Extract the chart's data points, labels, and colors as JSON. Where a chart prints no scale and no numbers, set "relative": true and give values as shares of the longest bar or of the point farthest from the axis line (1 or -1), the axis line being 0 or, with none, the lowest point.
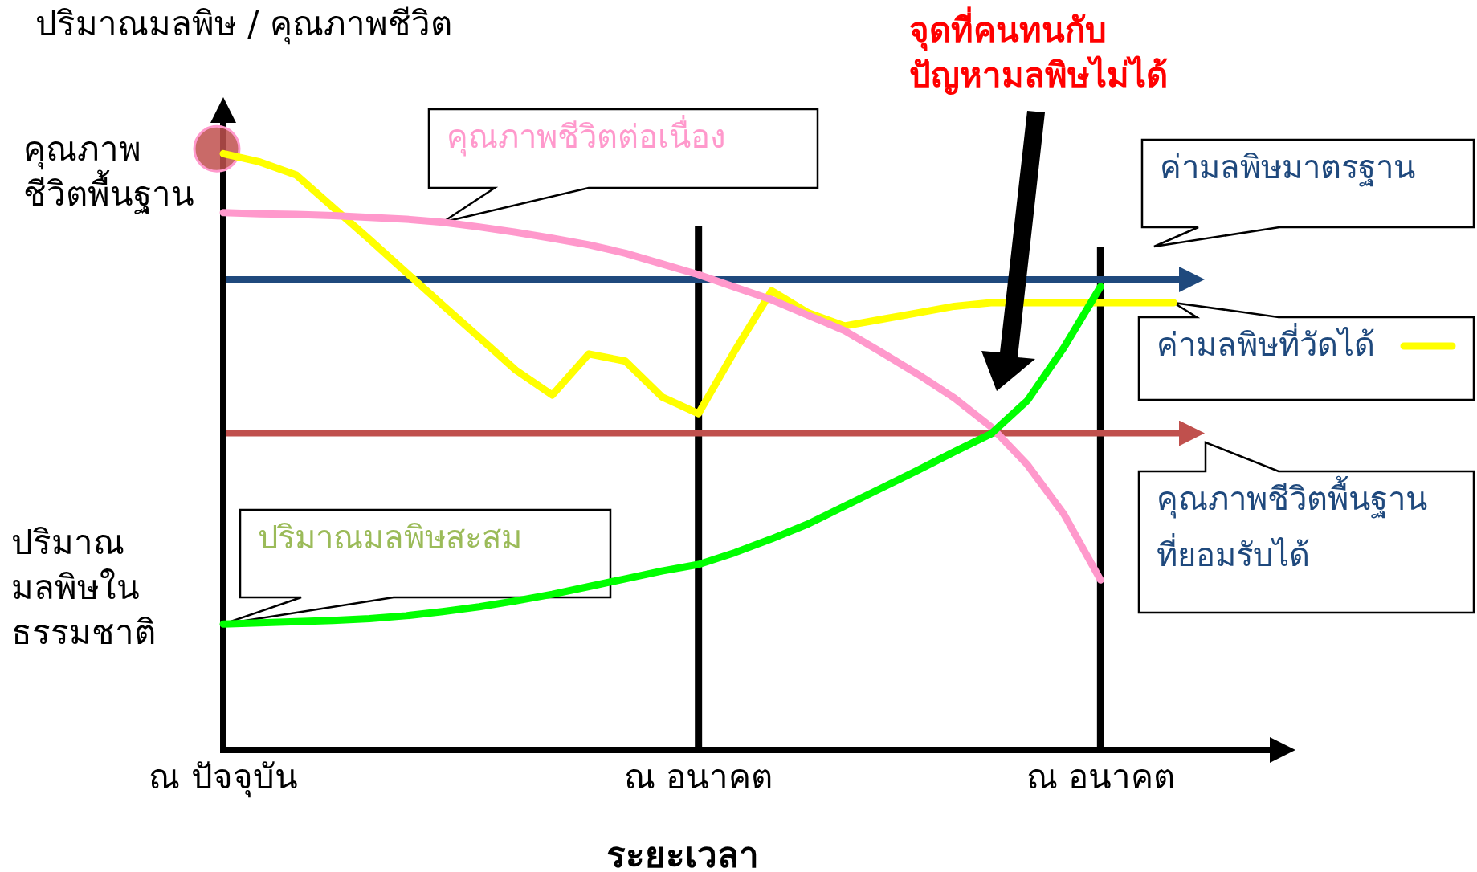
{
  "chart_data": {
    "type": "line",
    "relative": true,
    "ylabel": "ปริมาณมลพิษ / คุณภาพชีวิต",
    "xlabel": "ระยะเวลา",
    "categories": [
      "ณ ปัจจุบัน",
      null,
      null,
      null,
      null,
      null,
      null,
      null,
      null,
      null,
      null,
      null,
      null,
      "ณ อนาคต",
      null,
      null,
      null,
      null,
      null,
      null,
      null,
      null,
      null,
      null,
      "ณ อนาคต",
      null,
      null
    ],
    "series": [
      {
        "name": "ค่ามลพิษที่วัดได้",
        "color": "#ffff00",
        "values": [
          1.0,
          0.986,
          0.964,
          0.91,
          0.856,
          0.801,
          0.746,
          0.692,
          0.637,
          0.595,
          0.664,
          0.652,
          0.592,
          0.564,
          0.67,
          0.77,
          0.733,
          0.711,
          0.722,
          0.733,
          0.744,
          0.75,
          0.75,
          0.75,
          0.75,
          0.75,
          0.75
        ]
      },
      {
        "name": "คุณภาพชีวิตต่อเนื่อง",
        "color": "#ff99cc",
        "values": [
          0.901,
          0.899,
          0.898,
          0.896,
          0.893,
          0.89,
          0.885,
          0.877,
          0.868,
          0.858,
          0.847,
          0.833,
          0.815,
          0.797,
          0.776,
          0.755,
          0.729,
          0.703,
          0.667,
          0.63,
          0.59,
          0.542,
          0.478,
          0.395,
          0.285,
          null,
          null
        ]
      },
      {
        "name": "ปริมาณมลพิษสะสม",
        "color": "#00ff00",
        "values": [
          0.211,
          0.213,
          0.215,
          0.217,
          0.22,
          0.225,
          0.232,
          0.24,
          0.25,
          0.261,
          0.274,
          0.287,
          0.3,
          0.311,
          0.331,
          0.354,
          0.379,
          0.409,
          0.439,
          0.469,
          0.5,
          0.53,
          0.586,
          0.675,
          0.777,
          null,
          null
        ]
      }
    ],
    "ref_lines": [
      {
        "axis": "y",
        "value": 0.789,
        "label": "ค่ามลพิษมาตรฐาน",
        "color": "#1f497d"
      },
      {
        "axis": "y",
        "value": 0.531,
        "label": "คุณภาพชีวิตพื้นฐาน\nที่ยอมรับได้",
        "color": "#c0504d"
      }
    ],
    "annotations": [
      "คุณภาพ\nชีวิตพื้นฐาน",
      "ปริมาณ\nมลพิษใน\nธรรมชาติ",
      "จุดที่คนทนกับ\nปัญหามลพิษไม่ได้"
    ],
    "line_style": "solid"
  }
}
